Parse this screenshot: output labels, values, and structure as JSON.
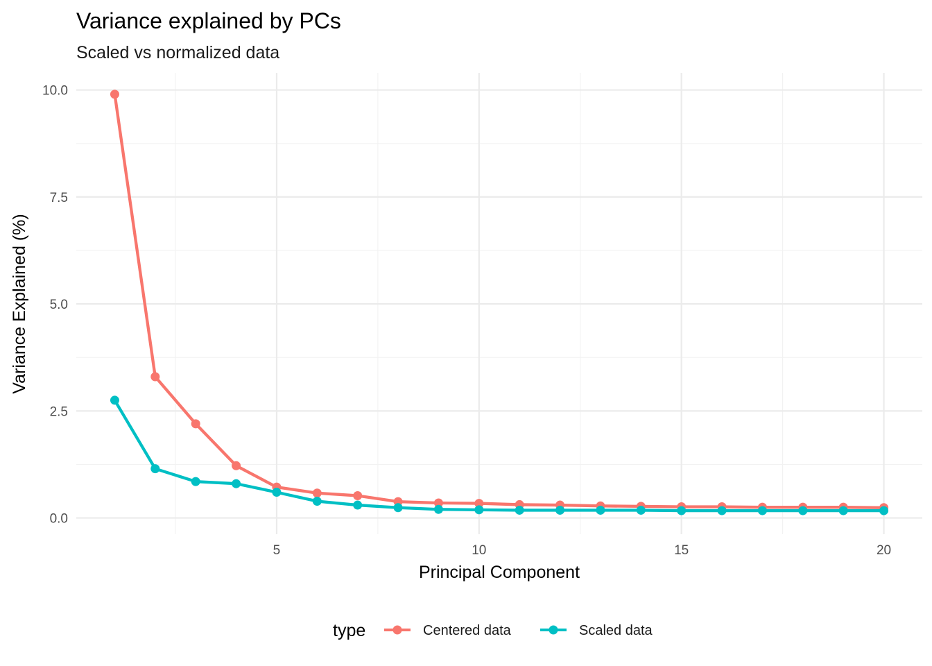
{
  "chart_data": {
    "type": "line",
    "title": "Variance explained by PCs",
    "subtitle": "Scaled vs normalized data",
    "xlabel": "Principal Component",
    "ylabel": "Variance Explained (%)",
    "x": [
      1,
      2,
      3,
      4,
      5,
      6,
      7,
      8,
      9,
      10,
      11,
      12,
      13,
      14,
      15,
      16,
      17,
      18,
      19,
      20
    ],
    "xlim": [
      0.05,
      20.95
    ],
    "ylim": [
      -0.38,
      10.4
    ],
    "x_ticks": [
      5,
      10,
      15,
      20
    ],
    "y_ticks": [
      0.0,
      2.5,
      5.0,
      7.5,
      10.0
    ],
    "x_tick_labels": [
      "5",
      "10",
      "15",
      "20"
    ],
    "y_tick_labels": [
      "0.0",
      "2.5",
      "5.0",
      "7.5",
      "10.0"
    ],
    "grid": true,
    "legend_position": "bottom",
    "legend_title": "type",
    "series": [
      {
        "name": "Centered data",
        "color": "#F8766D",
        "values": [
          9.9,
          3.3,
          2.2,
          1.22,
          0.72,
          0.58,
          0.52,
          0.38,
          0.35,
          0.34,
          0.31,
          0.3,
          0.28,
          0.27,
          0.26,
          0.26,
          0.25,
          0.25,
          0.25,
          0.24
        ]
      },
      {
        "name": "Scaled data",
        "color": "#00BFC4",
        "values": [
          2.75,
          1.15,
          0.85,
          0.8,
          0.6,
          0.39,
          0.3,
          0.24,
          0.2,
          0.19,
          0.18,
          0.18,
          0.18,
          0.18,
          0.17,
          0.17,
          0.17,
          0.17,
          0.17,
          0.17
        ]
      }
    ]
  }
}
